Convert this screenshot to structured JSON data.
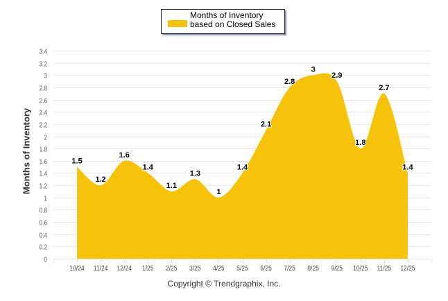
{
  "chart_data": {
    "type": "area",
    "title": "",
    "xlabel": "",
    "ylabel": "Months of Inventory",
    "ylim": [
      0,
      3.4
    ],
    "yticks": [
      "0",
      "0.2",
      "0.4",
      "0.6",
      "0.8",
      "1",
      "1.2",
      "1.4",
      "1.6",
      "1.8",
      "2",
      "2.2",
      "2.4",
      "2.6",
      "2.8",
      "3",
      "3.2",
      "3.4"
    ],
    "grid": true,
    "legend_position": "top-center",
    "categories": [
      "10/24",
      "11/24",
      "12/24",
      "1/25",
      "2/25",
      "3/25",
      "4/25",
      "5/25",
      "6/25",
      "7/25",
      "8/25",
      "9/25",
      "10/25",
      "11/25",
      "12/25"
    ],
    "series": [
      {
        "name": "Months of Inventory based on Closed Sales",
        "color": "#f7c20a",
        "values": [
          1.5,
          1.2,
          1.6,
          1.4,
          1.1,
          1.3,
          1.0,
          1.4,
          2.1,
          2.8,
          3.0,
          2.9,
          1.8,
          2.7,
          1.4
        ],
        "data_labels": [
          "1.5",
          "1.2",
          "1.6",
          "1.4",
          "1.1",
          "1.3",
          "1",
          "1.4",
          "2.1",
          "2.8",
          "3",
          "2.9",
          "1.8",
          "2.7",
          "1.4"
        ]
      }
    ]
  },
  "legend": {
    "label": "Months of Inventory based on Closed Sales"
  },
  "footer": {
    "copyright": "Copyright © Trendgraphix, Inc."
  }
}
